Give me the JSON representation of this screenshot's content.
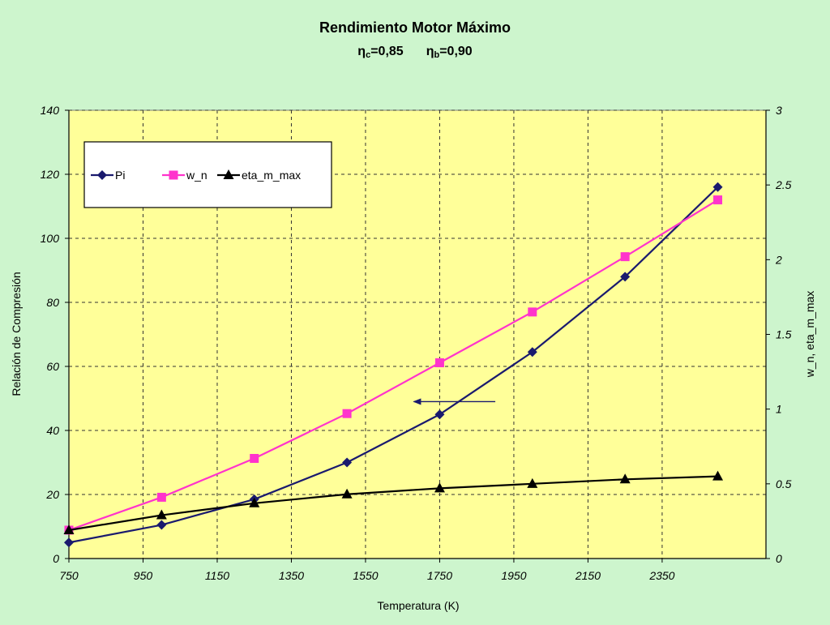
{
  "chart_data": {
    "type": "line",
    "title": "Rendimiento Motor Máximo",
    "subtitle": {
      "left_symbol": "η",
      "left_sub": "c",
      "left_value": "=0,85",
      "right_symbol": "η",
      "right_sub": "b",
      "right_value": "=0,90"
    },
    "xlabel": "Temperatura (K)",
    "ylabel": "Relación de Compresión",
    "y2label": "w_n, eta_m_max",
    "xlim": [
      750,
      2630
    ],
    "ylim": [
      0,
      140
    ],
    "y2lim": [
      0,
      3
    ],
    "x_ticks": [
      750,
      950,
      1150,
      1350,
      1550,
      1750,
      1950,
      2150,
      2350
    ],
    "y_ticks": [
      0,
      20,
      40,
      60,
      80,
      100,
      120,
      140
    ],
    "y2_ticks": [
      "0",
      "0.5",
      "1",
      "1.5",
      "2",
      "2.5",
      "3"
    ],
    "grid": true,
    "legend_position": "top-left",
    "colors": {
      "background": "#cdf5cd",
      "plot_area": "#ffff99",
      "grid": "#333333"
    },
    "series": [
      {
        "name": "Pi",
        "axis": "left",
        "color": "#1a1a6e",
        "marker": "diamond",
        "x": [
          750,
          1000,
          1250,
          1500,
          1750,
          2000,
          2250,
          2500
        ],
        "y": [
          5,
          10.5,
          18.5,
          30,
          45,
          64.5,
          88,
          116
        ]
      },
      {
        "name": "w_n",
        "axis": "right",
        "color": "#ff33cc",
        "marker": "square",
        "x": [
          750,
          1000,
          1250,
          1500,
          1750,
          2000,
          2250,
          2500
        ],
        "y": [
          0.19,
          0.41,
          0.67,
          0.97,
          1.31,
          1.65,
          2.02,
          2.4
        ]
      },
      {
        "name": "eta_m_max",
        "axis": "right",
        "color": "#000000",
        "marker": "triangle",
        "x": [
          750,
          1000,
          1250,
          1500,
          1750,
          2000,
          2250,
          2500
        ],
        "y": [
          0.19,
          0.29,
          0.37,
          0.43,
          0.47,
          0.5,
          0.53,
          0.55
        ]
      }
    ],
    "annotations": [
      {
        "type": "arrow",
        "from": [
          1900,
          49
        ],
        "to": [
          1680,
          49
        ],
        "axis": "left",
        "color": "#1a1a6e"
      }
    ]
  }
}
